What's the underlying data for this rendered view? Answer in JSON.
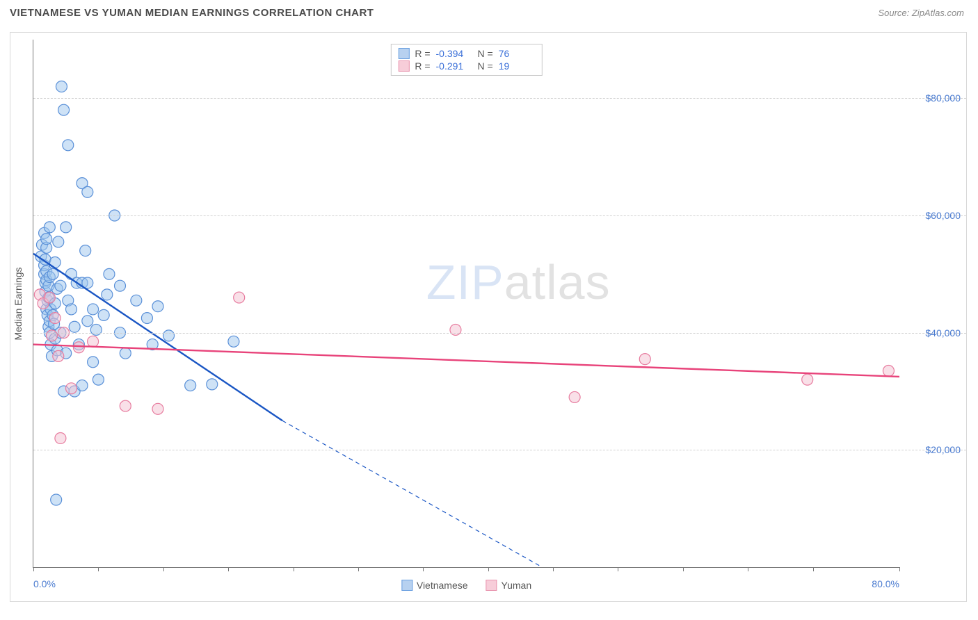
{
  "header": {
    "title": "VIETNAMESE VS YUMAN MEDIAN EARNINGS CORRELATION CHART",
    "source": "Source: ZipAtlas.com"
  },
  "watermark": {
    "bold": "ZIP",
    "light": "atlas"
  },
  "chart": {
    "type": "scatter",
    "background_color": "#ffffff",
    "grid_color": "#d0d0d0",
    "axis_color": "#777777",
    "label_color": "#4a7bd0",
    "text_color": "#555555",
    "xlim": [
      0,
      80
    ],
    "ylim": [
      0,
      90000
    ],
    "x_ticks_major": [
      0,
      80
    ],
    "x_ticks_minor": [
      6,
      12,
      18,
      24,
      30,
      36,
      42,
      48,
      54,
      60,
      66,
      72
    ],
    "x_tick_labels": {
      "0": "0.0%",
      "80": "80.0%"
    },
    "y_ticks": [
      20000,
      40000,
      60000,
      80000
    ],
    "y_tick_labels": {
      "20000": "$20,000",
      "40000": "$40,000",
      "60000": "$60,000",
      "80000": "$80,000"
    },
    "y_axis_title": "Median Earnings",
    "legend": [
      {
        "label": "Vietnamese",
        "fill": "#b7d1f0",
        "stroke": "#6a9fe0"
      },
      {
        "label": "Yuman",
        "fill": "#f7cdd9",
        "stroke": "#e893ad"
      }
    ],
    "correlation_box": [
      {
        "swatch_fill": "#b7d1f0",
        "swatch_stroke": "#6a9fe0",
        "r_label": "R =",
        "r": "-0.394",
        "n_label": "N =",
        "n": "76"
      },
      {
        "swatch_fill": "#f7cdd9",
        "swatch_stroke": "#e893ad",
        "r_label": "R =",
        "r": "-0.291",
        "n_label": "N =",
        "n": "19"
      }
    ],
    "marker_radius": 8,
    "marker_stroke_width": 1.2,
    "marker_fill_opacity": 0.5,
    "line_width": 2.4,
    "series": [
      {
        "name": "Vietnamese",
        "fill": "#9ec5ee",
        "stroke": "#5a90d8",
        "line_color": "#1a56c4",
        "trend": {
          "x1": 0,
          "y1": 53500,
          "x2": 23,
          "y2": 25000,
          "dash_extend_to": [
            47,
            0
          ]
        },
        "points": [
          [
            0.7,
            53000
          ],
          [
            0.8,
            55000
          ],
          [
            1.0,
            50000
          ],
          [
            1.0,
            51500
          ],
          [
            1.0,
            57000
          ],
          [
            1.1,
            47000
          ],
          [
            1.1,
            48500
          ],
          [
            1.1,
            52500
          ],
          [
            1.2,
            44000
          ],
          [
            1.2,
            49000
          ],
          [
            1.2,
            50500
          ],
          [
            1.2,
            54500
          ],
          [
            1.2,
            56000
          ],
          [
            1.3,
            43000
          ],
          [
            1.3,
            45500
          ],
          [
            1.4,
            41000
          ],
          [
            1.4,
            46000
          ],
          [
            1.4,
            48000
          ],
          [
            1.5,
            40000
          ],
          [
            1.5,
            42000
          ],
          [
            1.5,
            49500
          ],
          [
            1.5,
            58000
          ],
          [
            1.6,
            38000
          ],
          [
            1.6,
            44000
          ],
          [
            1.7,
            36000
          ],
          [
            1.8,
            50000
          ],
          [
            1.8,
            43000
          ],
          [
            1.9,
            41500
          ],
          [
            2.0,
            39000
          ],
          [
            2.0,
            45000
          ],
          [
            2.0,
            52000
          ],
          [
            2.1,
            11500
          ],
          [
            2.2,
            37000
          ],
          [
            2.2,
            47500
          ],
          [
            2.3,
            55500
          ],
          [
            2.5,
            40000
          ],
          [
            2.5,
            48000
          ],
          [
            2.6,
            82000
          ],
          [
            2.8,
            78000
          ],
          [
            2.8,
            30000
          ],
          [
            3.0,
            36500
          ],
          [
            3.0,
            58000
          ],
          [
            3.2,
            45500
          ],
          [
            3.2,
            72000
          ],
          [
            3.5,
            50000
          ],
          [
            3.5,
            44000
          ],
          [
            3.8,
            30000
          ],
          [
            3.8,
            41000
          ],
          [
            4.0,
            48500
          ],
          [
            4.2,
            38000
          ],
          [
            4.5,
            65500
          ],
          [
            4.5,
            31000
          ],
          [
            4.5,
            48500
          ],
          [
            4.8,
            54000
          ],
          [
            5.0,
            42000
          ],
          [
            5.0,
            48500
          ],
          [
            5.0,
            64000
          ],
          [
            5.5,
            35000
          ],
          [
            5.5,
            44000
          ],
          [
            5.8,
            40500
          ],
          [
            6.0,
            32000
          ],
          [
            6.5,
            43000
          ],
          [
            6.8,
            46500
          ],
          [
            7.0,
            50000
          ],
          [
            7.5,
            60000
          ],
          [
            8.0,
            40000
          ],
          [
            8.0,
            48000
          ],
          [
            8.5,
            36500
          ],
          [
            9.5,
            45500
          ],
          [
            10.5,
            42500
          ],
          [
            11.0,
            38000
          ],
          [
            11.5,
            44500
          ],
          [
            12.5,
            39500
          ],
          [
            14.5,
            31000
          ],
          [
            16.5,
            31200
          ],
          [
            18.5,
            38500
          ]
        ]
      },
      {
        "name": "Yuman",
        "fill": "#f4c2d1",
        "stroke": "#e77c9f",
        "line_color": "#e8437a",
        "trend": {
          "x1": 0,
          "y1": 38000,
          "x2": 80,
          "y2": 32500
        },
        "points": [
          [
            0.6,
            46500
          ],
          [
            0.9,
            45000
          ],
          [
            1.5,
            46000
          ],
          [
            1.7,
            39500
          ],
          [
            2.0,
            42500
          ],
          [
            2.3,
            36000
          ],
          [
            2.5,
            22000
          ],
          [
            2.8,
            40000
          ],
          [
            3.5,
            30500
          ],
          [
            4.2,
            37500
          ],
          [
            5.5,
            38500
          ],
          [
            8.5,
            27500
          ],
          [
            11.5,
            27000
          ],
          [
            19.0,
            46000
          ],
          [
            39.0,
            40500
          ],
          [
            50.0,
            29000
          ],
          [
            56.5,
            35500
          ],
          [
            71.5,
            32000
          ],
          [
            79.0,
            33500
          ]
        ]
      }
    ]
  }
}
